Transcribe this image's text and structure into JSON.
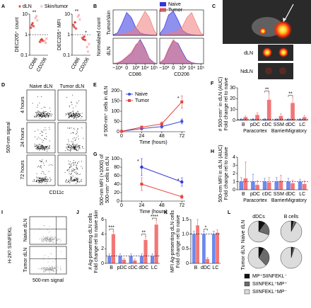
{
  "panel_labels": [
    "A",
    "B",
    "C",
    "D",
    "E",
    "F",
    "G",
    "H",
    "I",
    "J",
    "K",
    "L"
  ],
  "panel_b": {
    "ylabel": "Normalized count"
  },
  "panel_c": {
    "labels": [
      "dLN",
      "NdLN"
    ]
  },
  "panel_d": {
    "columns": [
      "Naive dLN",
      "Tumor dLN"
    ],
    "rows": [
      "4 hours",
      "24 hours",
      "72 hours"
    ],
    "ylabel": "500-nm signal",
    "xlabel": "CD11c"
  },
  "panel_i": {
    "rows": [
      "Naive dLN",
      "Tumor dLN"
    ],
    "ylabel": "H-2Kᵇ SIINFEKL",
    "xlabel": "500-nm signal"
  },
  "panel_l": {
    "columns": [
      "dDCs",
      "B cells"
    ],
    "rows": [
      "Naive dLN",
      "Tumor dLN"
    ]
  },
  "chart_data": [
    {
      "type": "strip",
      "ylabel": "DEC205⁺ count",
      "log": true,
      "ylim": [
        0.1,
        10
      ],
      "yticks": [
        0.1,
        1,
        10
      ],
      "reference_line": 1,
      "categories": [
        "CD86",
        "CD206"
      ],
      "series": [
        {
          "name": "dLN",
          "color": "#e0302a",
          "marker": "asterisk",
          "values": [
            [
              2.2,
              3.0,
              3.6,
              2.6
            ],
            [
              0.45,
              0.55,
              0.6,
              0.5
            ]
          ]
        },
        {
          "name": "Skin/tumor",
          "color": "#f29a9a",
          "marker": "cross",
          "values": [
            [
              6.5,
              8.0,
              5.0
            ],
            [
              0.5,
              0.4,
              0.65
            ]
          ]
        }
      ],
      "annotations": [
        {
          "text": "**",
          "category": "CD86"
        }
      ]
    },
    {
      "type": "strip",
      "ylabel": "DEC205⁺ MFI",
      "log": true,
      "ylim": [
        0.1,
        10
      ],
      "yticks": [
        0.1,
        1,
        10
      ],
      "reference_line": 1,
      "categories": [
        "CD86",
        "CD206"
      ],
      "series": [
        {
          "color": "#e0302a",
          "marker": "asterisk",
          "values": [
            [
              3.0,
              2.4,
              4.0,
              2.0
            ],
            [
              0.7,
              0.6,
              0.8,
              0.55
            ]
          ]
        },
        {
          "color": "#f29a9a",
          "marker": "cross",
          "values": [
            [
              7.5,
              9.0,
              5.5
            ],
            [
              0.25,
              0.15,
              0.35
            ]
          ]
        }
      ],
      "annotations": [
        {
          "text": "**",
          "category": "CD86"
        },
        {
          "text": "*",
          "category": "CD206"
        }
      ]
    },
    {
      "type": "density",
      "xscale": "asinh",
      "ylabel": "Tumor/skin",
      "xlim": [
        -3000,
        200000
      ],
      "ylim": [
        0,
        100
      ],
      "x": [
        -3000,
        -1000,
        -300,
        0,
        300,
        1000,
        3000,
        10000,
        30000,
        100000,
        200000
      ],
      "series": [
        {
          "name": "Naive",
          "color": "#3434e0",
          "values": [
            2,
            10,
            45,
            90,
            70,
            30,
            10,
            4,
            2,
            1,
            0
          ]
        },
        {
          "name": "Tumor",
          "color": "#f07c7c",
          "values": [
            0,
            2,
            5,
            10,
            15,
            30,
            60,
            95,
            70,
            20,
            3
          ]
        }
      ]
    },
    {
      "type": "density",
      "xscale": "asinh",
      "xlim": [
        -3000,
        200000
      ],
      "ylim": [
        0,
        100
      ],
      "x": [
        -3000,
        -1000,
        -300,
        0,
        300,
        1000,
        3000,
        10000,
        30000,
        100000,
        200000
      ],
      "series": [
        {
          "color": "#3434e0",
          "values": [
            5,
            30,
            80,
            95,
            60,
            20,
            8,
            3,
            1,
            0,
            0
          ]
        },
        {
          "color": "#f07c7c",
          "values": [
            0,
            3,
            8,
            12,
            18,
            35,
            70,
            90,
            50,
            10,
            1
          ]
        }
      ]
    },
    {
      "type": "density",
      "xscale": "asinh",
      "ylabel": "dLN",
      "xlabel": "CD86",
      "xlim": [
        -3000,
        200000
      ],
      "ylim": [
        0,
        100
      ],
      "xticks": [
        {
          "value": -1000,
          "label": "−10³"
        },
        0,
        {
          "value": 1000,
          "label": "10³"
        },
        {
          "value": 10000,
          "label": "10⁴"
        },
        {
          "value": 100000,
          "label": "10⁵"
        }
      ],
      "x": [
        -3000,
        -1000,
        -300,
        0,
        300,
        1000,
        3000,
        10000,
        30000,
        100000,
        200000
      ],
      "series": [
        {
          "color": "#3434e0",
          "values": [
            1,
            3,
            10,
            25,
            40,
            70,
            95,
            60,
            20,
            4,
            0
          ]
        },
        {
          "color": "#f07c7c",
          "values": [
            1,
            4,
            12,
            28,
            45,
            75,
            90,
            55,
            18,
            3,
            0
          ]
        }
      ]
    },
    {
      "type": "density",
      "xscale": "asinh",
      "xlabel": "CD206",
      "xlim": [
        -3000,
        200000
      ],
      "ylim": [
        0,
        100
      ],
      "xticks": [
        {
          "value": -1000,
          "label": "−10³"
        },
        0,
        {
          "value": 1000,
          "label": "10³"
        },
        {
          "value": 10000,
          "label": "10⁴"
        },
        {
          "value": 100000,
          "label": "10⁵"
        }
      ],
      "x": [
        -3000,
        -1000,
        -300,
        0,
        300,
        1000,
        3000,
        10000,
        30000,
        100000,
        200000
      ],
      "series": [
        {
          "color": "#3434e0",
          "values": [
            3,
            15,
            55,
            90,
            80,
            45,
            15,
            5,
            1,
            0,
            0
          ]
        },
        {
          "color": "#f07c7c",
          "values": [
            4,
            18,
            60,
            95,
            75,
            40,
            12,
            4,
            1,
            0,
            0
          ]
        }
      ]
    },
    {
      "type": "line",
      "ylabel": "# 500-nm⁺ cells in dLN",
      "xlabel": "Time (hours)",
      "legend": "upper left",
      "x": [
        0,
        24,
        48,
        72
      ],
      "xlim": [
        0,
        76
      ],
      "xticks": [
        0,
        24,
        48,
        72
      ],
      "ylim": [
        0,
        200
      ],
      "yticks": [
        0,
        50,
        100,
        150,
        200
      ],
      "series": [
        {
          "name": "Naive",
          "color": "#3a4fd8",
          "marker": "circle",
          "values": [
            2,
            15,
            25,
            50
          ],
          "errors": [
            2,
            5,
            8,
            12
          ]
        },
        {
          "name": "Tumor",
          "color": "#e8463e",
          "marker": "square",
          "values": [
            2,
            22,
            38,
            145
          ],
          "errors": [
            2,
            6,
            10,
            30
          ]
        }
      ],
      "annotations": [
        {
          "text": "*",
          "x": 72
        }
      ]
    },
    {
      "type": "bar",
      "ylabel": [
        "# 500-nm⁺ in dLN (AUC)",
        "Fold change rel to naive"
      ],
      "categories": [
        "B",
        "pDC",
        "cDC",
        "SSM",
        "dDC",
        "LC"
      ],
      "ylim": [
        0,
        30
      ],
      "yticks": [
        0,
        10,
        20,
        30
      ],
      "reference_line": 1,
      "series": [
        {
          "color": "#7088ea",
          "values": [
            1,
            1,
            1,
            1,
            1,
            1
          ],
          "errors": [
            0.6,
            0.8,
            0.7,
            0.5,
            0.6,
            0.5
          ]
        },
        {
          "color": "#f27676",
          "values": [
            3,
            5,
            19,
            4,
            16,
            3
          ],
          "errors": [
            1,
            2,
            6,
            2,
            5,
            1.5
          ]
        }
      ],
      "groups": [
        {
          "text": "Paracortex",
          "from": "B",
          "to": "cDC"
        },
        {
          "text": "Barrier",
          "from": "SSM",
          "to": "SSM"
        },
        {
          "text": "Migratory",
          "from": "dDC",
          "to": "LC"
        }
      ],
      "annotations": [
        {
          "text": "**",
          "category": "cDC"
        },
        {
          "text": "**",
          "category": "dDC"
        }
      ]
    },
    {
      "type": "line",
      "ylabel": [
        "500-nm MFI (×1000) of",
        "500-nm⁺ cells in dLN"
      ],
      "xlabel": "Time (hours)",
      "x": [
        24,
        72
      ],
      "xlim": [
        0,
        76
      ],
      "xticks": [
        0,
        24,
        48,
        72
      ],
      "ylim": [
        0,
        100
      ],
      "yticks": [
        0,
        20,
        40,
        60,
        80,
        100
      ],
      "series": [
        {
          "color": "#3434e0",
          "marker": "circle",
          "values": [
            80,
            45
          ],
          "errors": [
            20,
            10
          ]
        },
        {
          "color": "#e8463e",
          "marker": "square",
          "values": [
            40,
            10
          ],
          "errors": [
            15,
            5
          ]
        }
      ],
      "annotations": [
        {
          "text": "*",
          "x": 24
        },
        {
          "text": "*",
          "x": 72
        }
      ]
    },
    {
      "type": "bar",
      "ylabel": [
        "500-nm MFI in dLN (AUC)",
        "Fold change rel to naive"
      ],
      "categories": [
        "B",
        "pDC",
        "cDC",
        "SSM",
        "dDC",
        "LC"
      ],
      "ylim": [
        0,
        4
      ],
      "yticks": [
        0,
        1,
        2,
        3,
        4
      ],
      "reference_line": 1,
      "series": [
        {
          "color": "#7088ea",
          "values": [
            1,
            1,
            1,
            1,
            1,
            1
          ],
          "errors": [
            0.5,
            0.9,
            0.4,
            0.5,
            0.4,
            0.3
          ]
        },
        {
          "color": "#f27676",
          "values": [
            1.4,
            0.6,
            0.9,
            1.1,
            0.8,
            0.7
          ],
          "errors": [
            2,
            0.5,
            0.6,
            0.7,
            0.4,
            0.4
          ]
        }
      ],
      "groups": [
        {
          "text": "Paracortex",
          "from": "B",
          "to": "cDC"
        },
        {
          "text": "Barrier",
          "from": "SSM",
          "to": "SSM"
        },
        {
          "text": "Migratory",
          "from": "dDC",
          "to": "LC"
        }
      ]
    },
    {
      "type": "bar",
      "ylabel": [
        "# Ag-presenting dLN cells",
        "Fold change rel to naive skin"
      ],
      "categories": [
        "B",
        "pDC",
        "cDC",
        "dDC",
        "LC"
      ],
      "ylim": [
        0,
        6
      ],
      "yticks": [
        0,
        2,
        4,
        6
      ],
      "reference_line": 1,
      "series": [
        {
          "color": "#7088ea",
          "values": [
            1,
            1,
            1,
            1,
            1
          ],
          "errors": [
            0.3,
            0.3,
            0.3,
            0.3,
            0.3
          ]
        },
        {
          "color": "#f27676",
          "values": [
            4,
            0.5,
            0.4,
            3.2,
            5.3
          ],
          "errors": [
            0.4,
            0.2,
            0.2,
            0.5,
            0.6
          ]
        }
      ],
      "annotations": [
        {
          "text": "***",
          "category": "B"
        },
        {
          "text": "**",
          "category": "dDC"
        },
        {
          "text": "****",
          "category": "LC"
        }
      ]
    },
    {
      "type": "bar",
      "ylabel": [
        "MFI Ag-presenting dLN cells",
        "Fold change rel to naive"
      ],
      "categories": [
        "B",
        "dDC",
        "LC"
      ],
      "ylim": [
        0,
        1.5
      ],
      "yticks": [
        0,
        0.5,
        {
          "value": 1,
          "label": "1.0"
        },
        1.5
      ],
      "reference_line": 1,
      "series": [
        {
          "color": "#7088ea",
          "values": [
            1,
            1,
            1
          ],
          "errors": [
            0.1,
            0.1,
            0.1
          ]
        },
        {
          "color": "#f27676",
          "values": [
            1.3,
            0.15,
            1.05
          ],
          "errors": [
            0.2,
            0.05,
            0.1
          ]
        }
      ],
      "annotations": [
        {
          "text": "*",
          "category": "dDC"
        }
      ]
    },
    {
      "type": "pie",
      "labels": [
        "MP⁺SIINFEKL⁻",
        "SIINFEKL⁺MP⁺",
        "SIINFEKL⁺MP⁻"
      ],
      "colors": [
        "#111111",
        "#6b6b6b",
        "#dcdcdc"
      ],
      "values": [
        10,
        20,
        70
      ]
    },
    {
      "type": "pie",
      "colors": [
        "#111111",
        "#6b6b6b",
        "#dcdcdc"
      ],
      "values": [
        3,
        5,
        92
      ]
    },
    {
      "type": "pie",
      "colors": [
        "#111111",
        "#6b6b6b",
        "#dcdcdc"
      ],
      "values": [
        8,
        30,
        62
      ]
    },
    {
      "type": "pie",
      "colors": [
        "#111111",
        "#6b6b6b",
        "#dcdcdc"
      ],
      "values": [
        2,
        3,
        95
      ]
    }
  ]
}
